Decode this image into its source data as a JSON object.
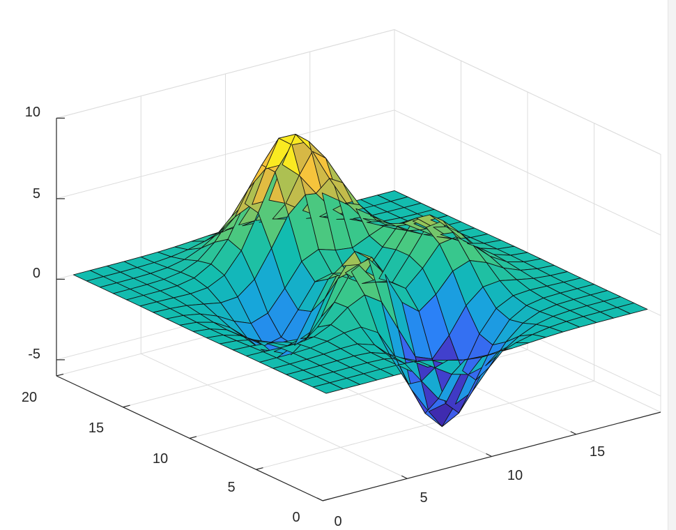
{
  "chart_data": {
    "type": "surface",
    "function": "peaks",
    "grid_size": 20,
    "x_range": [
      1,
      20
    ],
    "y_range": [
      1,
      20
    ],
    "z_range": [
      -6.5479,
      8.0752
    ],
    "xlim": [
      0,
      20
    ],
    "ylim": [
      0,
      20
    ],
    "zlim": [
      -6,
      10
    ],
    "x_ticks": [
      "0",
      "5",
      "10",
      "15"
    ],
    "y_ticks": [
      "0",
      "5",
      "10",
      "15",
      "20"
    ],
    "z_ticks": [
      "-5",
      "0",
      "5",
      "10"
    ],
    "grid": true,
    "box": "partial",
    "colormap": "parula",
    "colormap_stops": [
      "#3e26a8",
      "#4352e7",
      "#2c7ff8",
      "#17a6da",
      "#12bcb0",
      "#3fc986",
      "#92c55b",
      "#d7b845",
      "#fcc63a",
      "#f9fb15"
    ]
  }
}
